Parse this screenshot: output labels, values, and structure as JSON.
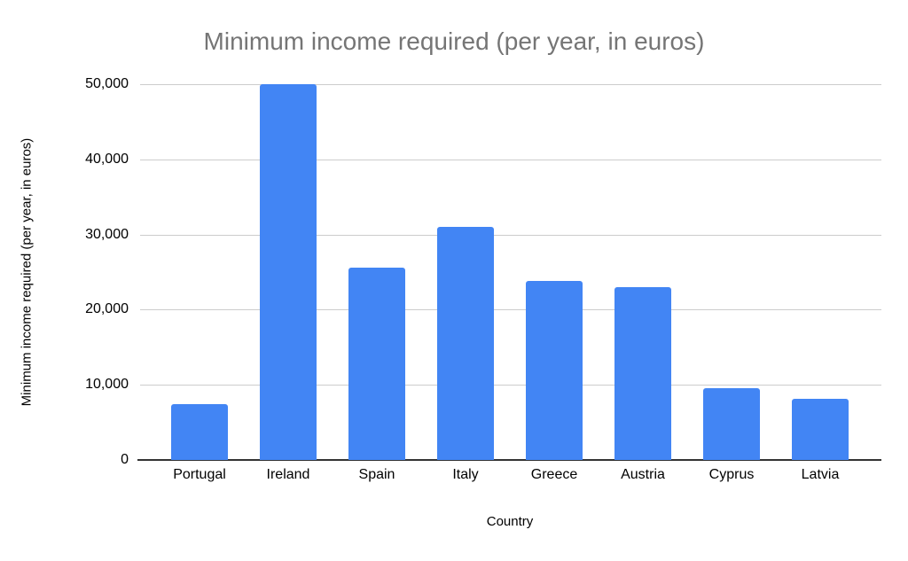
{
  "chart_data": {
    "type": "bar",
    "title": "Minimum income required (per year, in euros)",
    "xlabel": "Country",
    "ylabel": "Minimum income required (per year, in euros)",
    "categories": [
      "Portugal",
      "Ireland",
      "Spain",
      "Italy",
      "Greece",
      "Austria",
      "Cyprus",
      "Latvia"
    ],
    "values": [
      7400,
      50000,
      25600,
      31000,
      23800,
      23000,
      9500,
      8100
    ],
    "ylim": [
      0,
      50000
    ],
    "ytick_step": 10000,
    "ytick_labels": [
      "0",
      "10,000",
      "20,000",
      "30,000",
      "40,000",
      "50,000"
    ],
    "grid": "horizontal-on",
    "legend": "none",
    "bar_color": "#4285f4",
    "title_color": "#757575",
    "gridline_color": "#cccccc",
    "axis_line_color": "#333333",
    "label_color": "#000000",
    "background_color": "#ffffff"
  }
}
